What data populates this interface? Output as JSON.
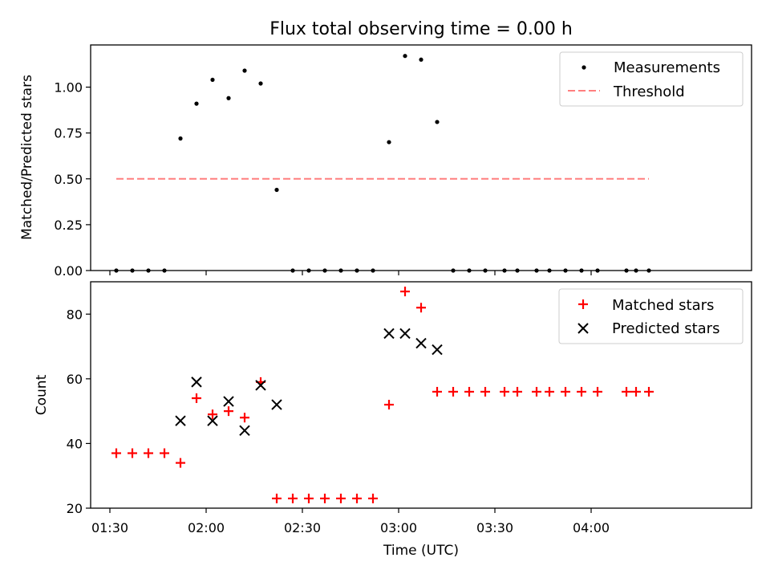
{
  "chart_data": [
    {
      "type": "scatter",
      "title": "Flux total observing time = 0.00 h",
      "xlabel": "",
      "ylabel": "Matched/Predicted stars",
      "ylim": [
        0,
        1.23
      ],
      "xlim": [
        "01:24",
        "04:50"
      ],
      "y_ticks": [
        "0.00",
        "0.25",
        "0.50",
        "0.75",
        "1.00"
      ],
      "y_tick_values": [
        0,
        0.25,
        0.5,
        0.75,
        1.0
      ],
      "legend_position": "top-right",
      "grid": false,
      "series": [
        {
          "name": "Measurements",
          "marker": "dot",
          "color": "#000000",
          "points": [
            {
              "x": "01:32",
              "y": 0.0
            },
            {
              "x": "01:37",
              "y": 0.0
            },
            {
              "x": "01:42",
              "y": 0.0
            },
            {
              "x": "01:47",
              "y": 0.0
            },
            {
              "x": "01:52",
              "y": 0.72
            },
            {
              "x": "01:57",
              "y": 0.91
            },
            {
              "x": "02:02",
              "y": 1.04
            },
            {
              "x": "02:07",
              "y": 0.94
            },
            {
              "x": "02:12",
              "y": 1.09
            },
            {
              "x": "02:17",
              "y": 1.02
            },
            {
              "x": "02:22",
              "y": 0.44
            },
            {
              "x": "02:27",
              "y": 0.0
            },
            {
              "x": "02:32",
              "y": 0.0
            },
            {
              "x": "02:37",
              "y": 0.0
            },
            {
              "x": "02:42",
              "y": 0.0
            },
            {
              "x": "02:47",
              "y": 0.0
            },
            {
              "x": "02:52",
              "y": 0.0
            },
            {
              "x": "02:57",
              "y": 0.7
            },
            {
              "x": "03:02",
              "y": 1.17
            },
            {
              "x": "03:07",
              "y": 1.15
            },
            {
              "x": "03:12",
              "y": 0.81
            },
            {
              "x": "03:17",
              "y": 0.0
            },
            {
              "x": "03:22",
              "y": 0.0
            },
            {
              "x": "03:27",
              "y": 0.0
            },
            {
              "x": "03:33",
              "y": 0.0
            },
            {
              "x": "03:37",
              "y": 0.0
            },
            {
              "x": "03:43",
              "y": 0.0
            },
            {
              "x": "03:47",
              "y": 0.0
            },
            {
              "x": "03:52",
              "y": 0.0
            },
            {
              "x": "03:57",
              "y": 0.0
            },
            {
              "x": "04:02",
              "y": 0.0
            },
            {
              "x": "04:11",
              "y": 0.0
            },
            {
              "x": "04:14",
              "y": 0.0
            },
            {
              "x": "04:18",
              "y": 0.0
            }
          ]
        },
        {
          "name": "Threshold",
          "marker": "dashed-line",
          "color": "#ff7f7f",
          "points": [
            {
              "x": "01:32",
              "y": 0.5
            },
            {
              "x": "04:18",
              "y": 0.5
            }
          ]
        }
      ]
    },
    {
      "type": "scatter",
      "title": "",
      "xlabel": "Time (UTC)",
      "ylabel": "Count",
      "ylim": [
        20,
        90
      ],
      "xlim": [
        "01:24",
        "04:50"
      ],
      "x_ticks": [
        "01:30",
        "02:00",
        "02:30",
        "03:00",
        "03:30",
        "04:00"
      ],
      "y_ticks": [
        "20",
        "40",
        "60",
        "80"
      ],
      "y_tick_values": [
        20,
        40,
        60,
        80
      ],
      "legend_position": "top-right",
      "grid": false,
      "series": [
        {
          "name": "Matched stars",
          "marker": "plus",
          "color": "#ff0000",
          "points": [
            {
              "x": "01:32",
              "y": 37
            },
            {
              "x": "01:37",
              "y": 37
            },
            {
              "x": "01:42",
              "y": 37
            },
            {
              "x": "01:47",
              "y": 37
            },
            {
              "x": "01:52",
              "y": 34
            },
            {
              "x": "01:57",
              "y": 54
            },
            {
              "x": "02:02",
              "y": 49
            },
            {
              "x": "02:07",
              "y": 50
            },
            {
              "x": "02:12",
              "y": 48
            },
            {
              "x": "02:17",
              "y": 59
            },
            {
              "x": "02:22",
              "y": 23
            },
            {
              "x": "02:27",
              "y": 23
            },
            {
              "x": "02:32",
              "y": 23
            },
            {
              "x": "02:37",
              "y": 23
            },
            {
              "x": "02:42",
              "y": 23
            },
            {
              "x": "02:47",
              "y": 23
            },
            {
              "x": "02:52",
              "y": 23
            },
            {
              "x": "02:57",
              "y": 52
            },
            {
              "x": "03:02",
              "y": 87
            },
            {
              "x": "03:07",
              "y": 82
            },
            {
              "x": "03:12",
              "y": 56
            },
            {
              "x": "03:17",
              "y": 56
            },
            {
              "x": "03:22",
              "y": 56
            },
            {
              "x": "03:27",
              "y": 56
            },
            {
              "x": "03:33",
              "y": 56
            },
            {
              "x": "03:37",
              "y": 56
            },
            {
              "x": "03:43",
              "y": 56
            },
            {
              "x": "03:47",
              "y": 56
            },
            {
              "x": "03:52",
              "y": 56
            },
            {
              "x": "03:57",
              "y": 56
            },
            {
              "x": "04:02",
              "y": 56
            },
            {
              "x": "04:11",
              "y": 56
            },
            {
              "x": "04:14",
              "y": 56
            },
            {
              "x": "04:18",
              "y": 56
            }
          ]
        },
        {
          "name": "Predicted stars",
          "marker": "x",
          "color": "#000000",
          "points": [
            {
              "x": "01:52",
              "y": 47
            },
            {
              "x": "01:57",
              "y": 59
            },
            {
              "x": "02:02",
              "y": 47
            },
            {
              "x": "02:07",
              "y": 53
            },
            {
              "x": "02:12",
              "y": 44
            },
            {
              "x": "02:17",
              "y": 58
            },
            {
              "x": "02:22",
              "y": 52
            },
            {
              "x": "02:57",
              "y": 74
            },
            {
              "x": "03:02",
              "y": 74
            },
            {
              "x": "03:07",
              "y": 71
            },
            {
              "x": "03:12",
              "y": 69
            }
          ]
        }
      ]
    }
  ]
}
